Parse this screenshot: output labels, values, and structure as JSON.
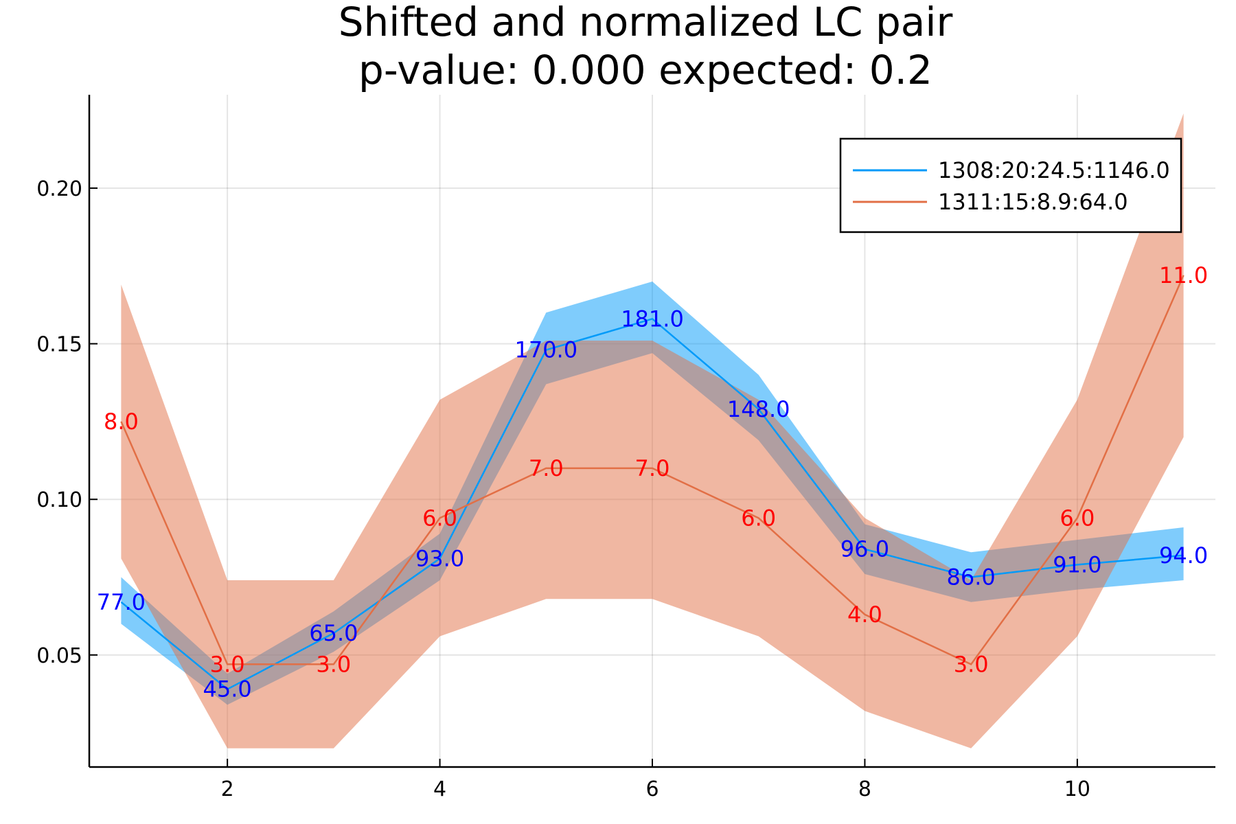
{
  "chart_data": {
    "type": "line",
    "title": "Shifted and normalized LC pair",
    "subtitle": "p-value: 0.000 expected: 0.2",
    "xlabel": "",
    "ylabel": "",
    "xlim": [
      0.7,
      11.3
    ],
    "ylim": [
      0.014,
      0.23
    ],
    "xticks": [
      2,
      4,
      6,
      8,
      10
    ],
    "yticks": [
      0.05,
      0.1,
      0.15,
      0.2
    ],
    "ytick_labels": [
      "0.05",
      "0.10",
      "0.15",
      "0.20"
    ],
    "grid": true,
    "legend_position": "top-right",
    "series": [
      {
        "name": "1308:20:24.5:1146.0",
        "color": "#009af9",
        "band_color": "#009af9",
        "x": [
          1,
          2,
          3,
          4,
          5,
          6,
          7,
          8,
          9,
          10,
          11
        ],
        "y": [
          0.067,
          0.039,
          0.057,
          0.081,
          0.148,
          0.158,
          0.129,
          0.084,
          0.075,
          0.079,
          0.082
        ],
        "lower": [
          0.06,
          0.034,
          0.051,
          0.074,
          0.137,
          0.147,
          0.119,
          0.076,
          0.067,
          0.071,
          0.074
        ],
        "upper": [
          0.075,
          0.044,
          0.064,
          0.089,
          0.16,
          0.17,
          0.14,
          0.092,
          0.083,
          0.087,
          0.091
        ],
        "labels": [
          "77.0",
          "45.0",
          "65.0",
          "93.0",
          "170.0",
          "181.0",
          "148.0",
          "96.0",
          "86.0",
          "91.0",
          "94.0"
        ],
        "label_color": "#0000ff"
      },
      {
        "name": "1311:15:8.9:64.0",
        "color": "#e26f46",
        "band_color": "#e26f46",
        "x": [
          1,
          2,
          3,
          4,
          5,
          6,
          7,
          8,
          9,
          10,
          11
        ],
        "y": [
          0.125,
          0.047,
          0.047,
          0.094,
          0.11,
          0.11,
          0.094,
          0.063,
          0.047,
          0.094,
          0.172
        ],
        "lower": [
          0.081,
          0.02,
          0.02,
          0.056,
          0.068,
          0.068,
          0.056,
          0.032,
          0.02,
          0.056,
          0.12
        ],
        "upper": [
          0.169,
          0.074,
          0.074,
          0.132,
          0.151,
          0.151,
          0.132,
          0.094,
          0.074,
          0.132,
          0.224
        ],
        "labels": [
          "8.0",
          "3.0",
          "3.0",
          "6.0",
          "7.0",
          "7.0",
          "6.0",
          "4.0",
          "3.0",
          "6.0",
          "11.0"
        ],
        "label_color": "#ff0000"
      }
    ]
  }
}
